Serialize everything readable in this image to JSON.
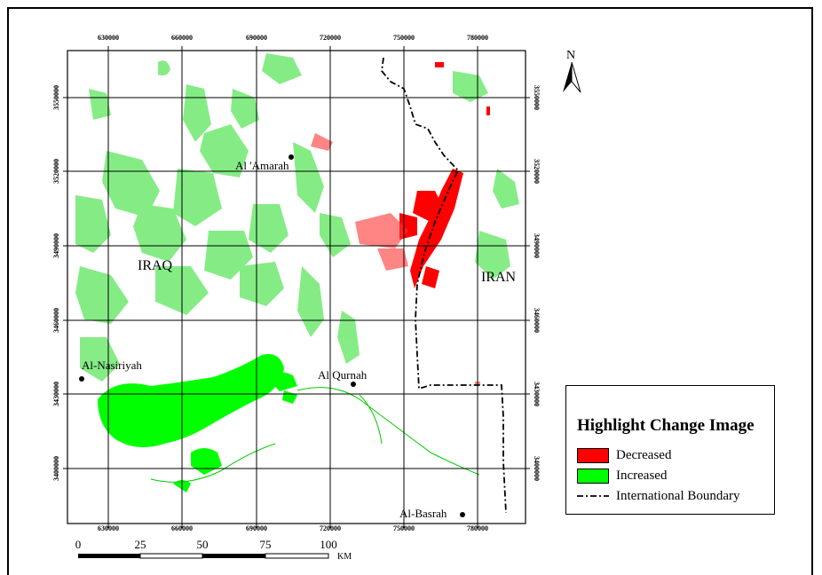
{
  "map": {
    "x_ticks_top": [
      "630000",
      "660000",
      "690000",
      "720000",
      "750000",
      "780000"
    ],
    "x_ticks_bottom": [
      "630000",
      "660000",
      "690000",
      "720000",
      "750000",
      "780000"
    ],
    "y_ticks": [
      "3550000",
      "3520000",
      "3490000",
      "3460000",
      "3430000",
      "3400000"
    ],
    "north_label": "N",
    "cities": [
      {
        "name": "Al 'Amarah"
      },
      {
        "name": "Al-Nasiriyah"
      },
      {
        "name": "Al Qurnah"
      },
      {
        "name": "Al-Basrah"
      }
    ],
    "countries": [
      {
        "name": "IRAQ"
      },
      {
        "name": "IRAN"
      }
    ],
    "scale_bar": {
      "labels": [
        "0",
        "25",
        "50",
        "75",
        "100"
      ],
      "unit": "KM"
    },
    "colors": {
      "decreased": "#ff0000",
      "increased": "#00ff00",
      "boundary": "#000000"
    }
  },
  "legend": {
    "title": "Highlight Change Image",
    "items": [
      {
        "label": "Decreased",
        "color": "#ff0000",
        "kind": "fill"
      },
      {
        "label": "Increased",
        "color": "#00ff00",
        "kind": "fill"
      },
      {
        "label": "International Boundary",
        "color": "#000000",
        "kind": "line"
      }
    ]
  }
}
